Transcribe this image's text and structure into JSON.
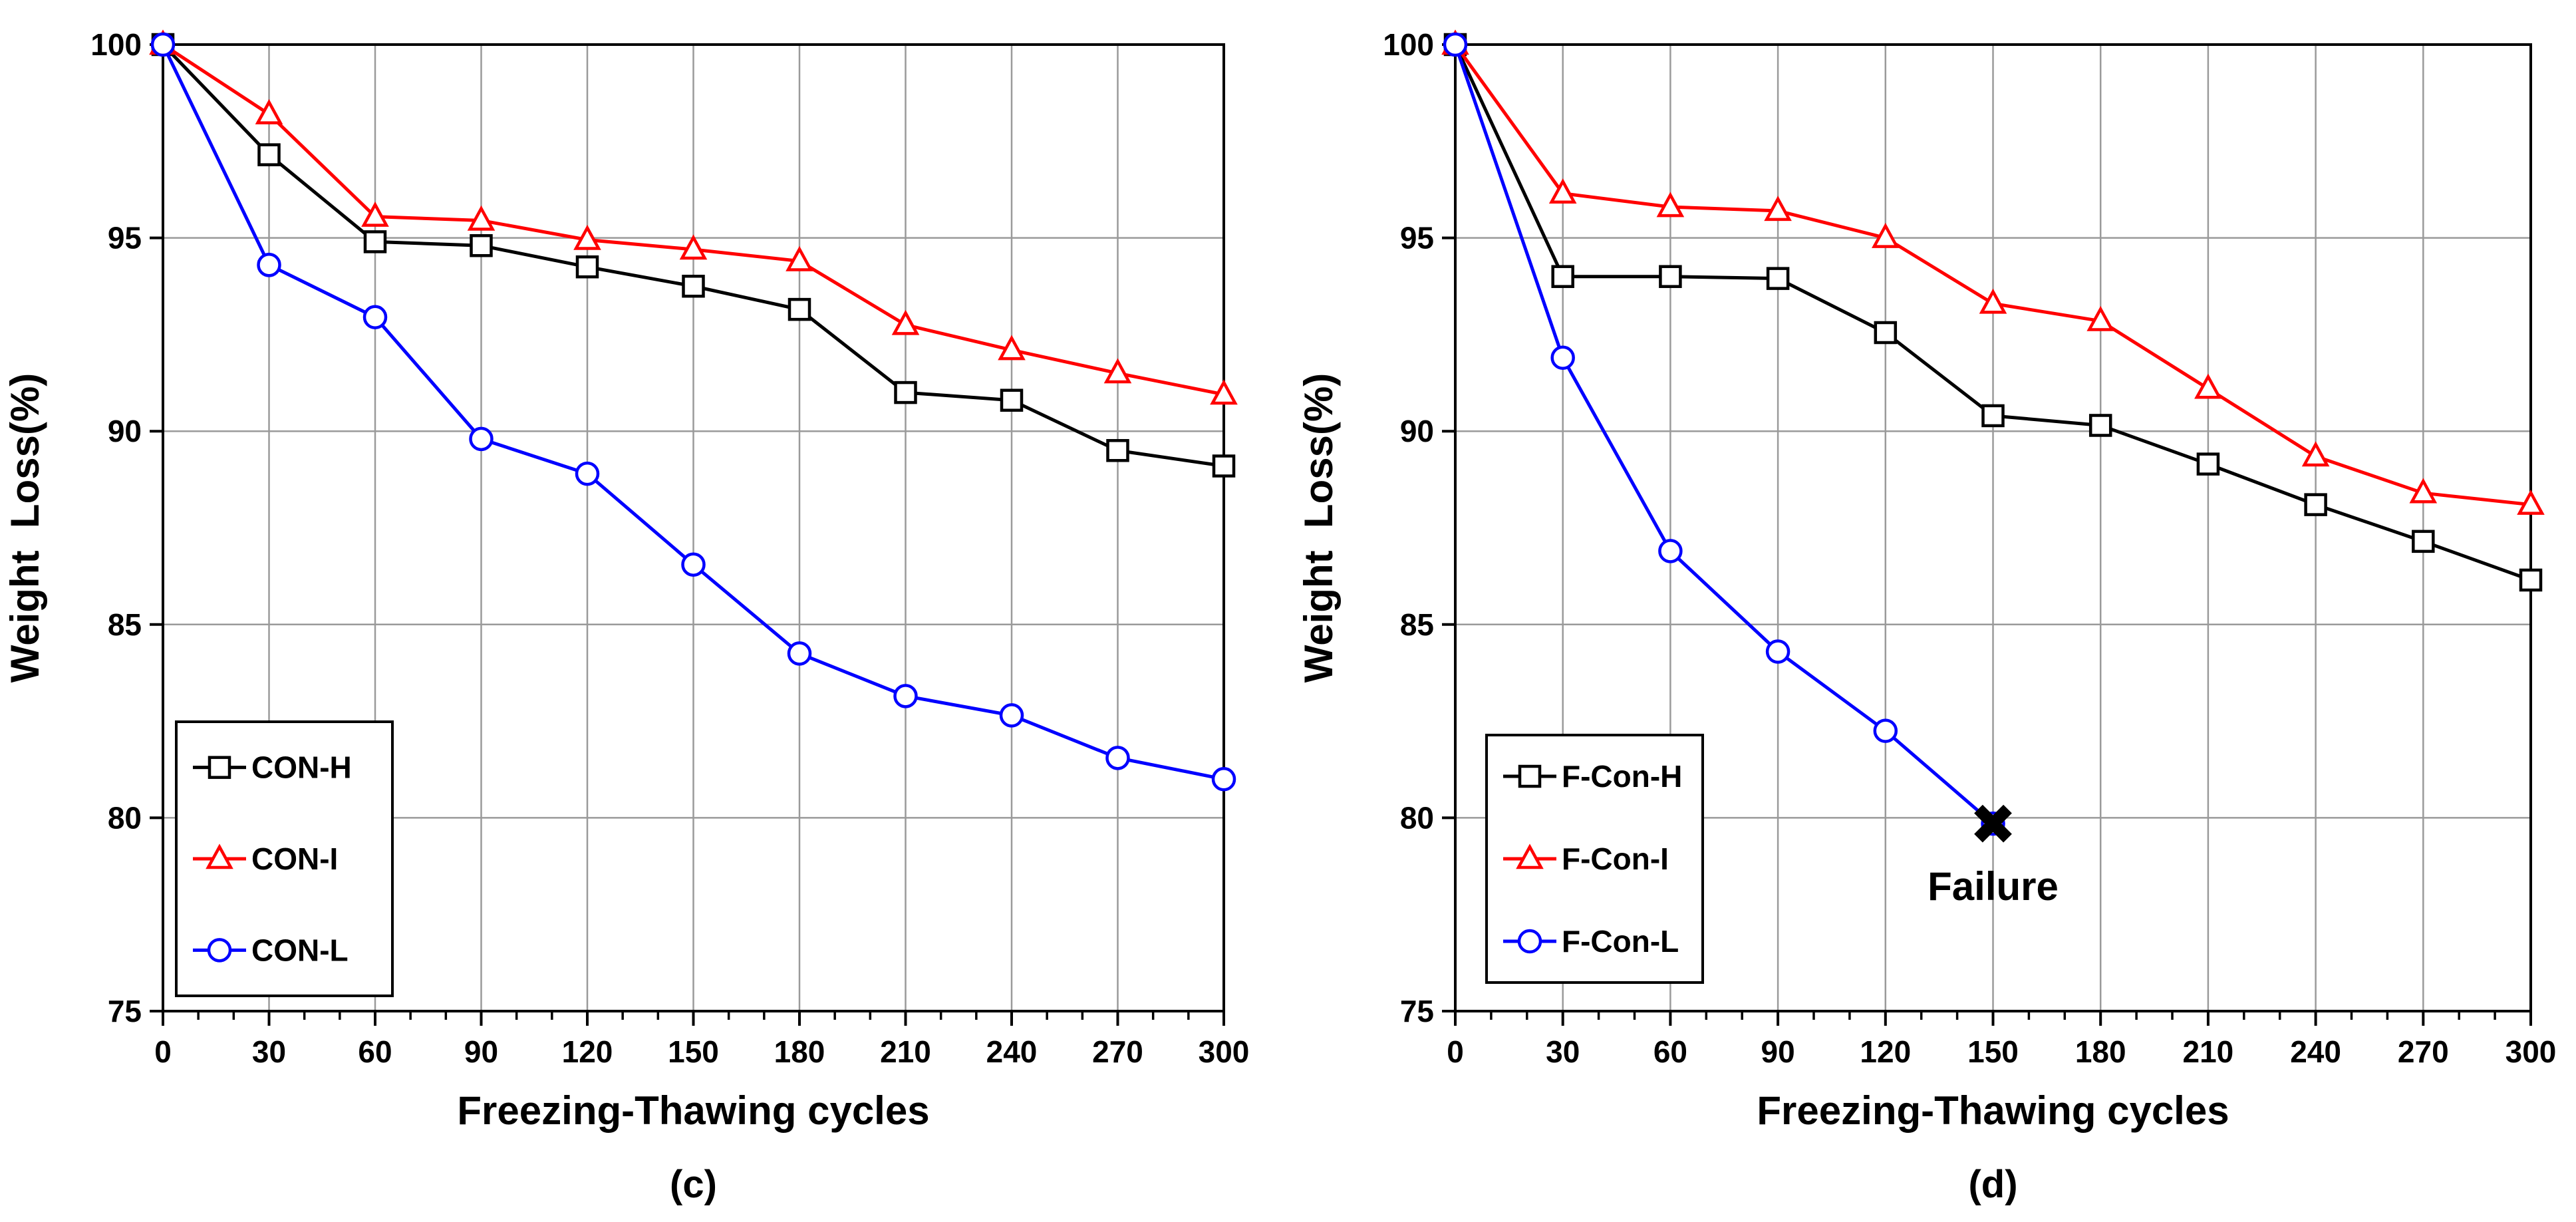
{
  "chart_data": [
    {
      "type": "line",
      "panel_label": "(c)",
      "title": "",
      "xlabel": "Freezing-Thawing cycles",
      "ylabel": "Weight  Loss(%)",
      "xlim": [
        0,
        300
      ],
      "ylim": [
        75,
        100
      ],
      "xticks": [
        0,
        30,
        60,
        90,
        120,
        150,
        180,
        210,
        240,
        270,
        300
      ],
      "yticks": [
        75,
        80,
        85,
        90,
        95,
        100
      ],
      "grid": true,
      "legend_position": "bottom-left",
      "series": [
        {
          "name": "CON-H",
          "color": "#000000",
          "marker": "square",
          "x": [
            0,
            30,
            60,
            90,
            120,
            150,
            180,
            210,
            240,
            270,
            300
          ],
          "values": [
            100,
            97.15,
            94.9,
            94.8,
            94.25,
            93.75,
            93.15,
            91.0,
            90.8,
            89.5,
            89.1
          ]
        },
        {
          "name": "CON-I",
          "color": "#ff0000",
          "marker": "triangle",
          "x": [
            0,
            30,
            60,
            90,
            120,
            150,
            180,
            210,
            240,
            270,
            300
          ],
          "values": [
            100,
            98.2,
            95.55,
            95.45,
            94.95,
            94.7,
            94.4,
            92.75,
            92.1,
            91.5,
            90.95
          ]
        },
        {
          "name": "CON-L",
          "color": "#0000ff",
          "marker": "circle",
          "x": [
            0,
            30,
            60,
            90,
            120,
            150,
            180,
            210,
            240,
            270,
            300
          ],
          "values": [
            100,
            94.3,
            92.95,
            89.8,
            88.9,
            86.55,
            84.25,
            83.15,
            82.65,
            81.55,
            81.0
          ]
        }
      ],
      "annotations": []
    },
    {
      "type": "line",
      "panel_label": "(d)",
      "title": "",
      "xlabel": "Freezing-Thawing cycles",
      "ylabel": "Weight  Loss(%)",
      "xlim": [
        0,
        300
      ],
      "ylim": [
        75,
        100
      ],
      "xticks": [
        0,
        30,
        60,
        90,
        120,
        150,
        180,
        210,
        240,
        270,
        300
      ],
      "yticks": [
        75,
        80,
        85,
        90,
        95,
        100
      ],
      "grid": true,
      "legend_position": "bottom-left",
      "series": [
        {
          "name": "F-Con-H",
          "color": "#000000",
          "marker": "square",
          "x": [
            0,
            30,
            60,
            90,
            120,
            150,
            180,
            210,
            240,
            270,
            300
          ],
          "values": [
            100,
            94.0,
            94.0,
            93.95,
            92.55,
            90.4,
            90.15,
            89.15,
            88.1,
            87.15,
            86.15
          ]
        },
        {
          "name": "F-Con-I",
          "color": "#ff0000",
          "marker": "triangle",
          "x": [
            0,
            30,
            60,
            90,
            120,
            150,
            180,
            210,
            240,
            270,
            300
          ],
          "values": [
            100,
            96.15,
            95.8,
            95.7,
            95.0,
            93.3,
            92.85,
            91.1,
            89.35,
            88.4,
            88.1
          ]
        },
        {
          "name": "F-Con-L",
          "color": "#0000ff",
          "marker": "circle",
          "x": [
            0,
            30,
            60,
            90,
            120,
            150
          ],
          "values": [
            100,
            91.9,
            86.9,
            84.3,
            82.25,
            79.85
          ]
        }
      ],
      "annotations": [
        {
          "text": "Failure",
          "x": 150,
          "y": 79.85,
          "marker": "x-cross"
        }
      ]
    }
  ]
}
